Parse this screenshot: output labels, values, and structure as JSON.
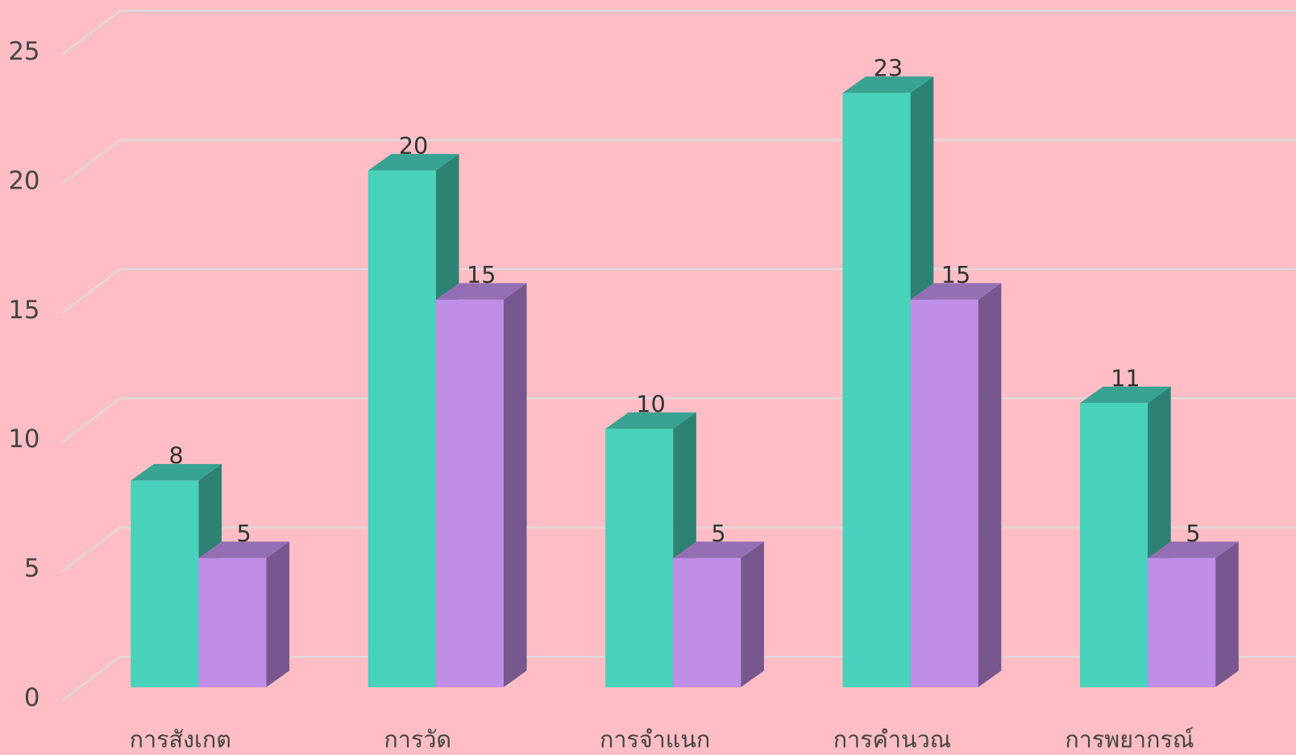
{
  "chart_data": {
    "type": "bar3d",
    "categories": [
      "การสังเกต",
      "การวัด",
      "การจำแนก",
      "การคำนวณ",
      "การพยากรณ์"
    ],
    "series": [
      {
        "color": "#48d1bb",
        "values": [
          8,
          20,
          10,
          23,
          11
        ]
      },
      {
        "color": "#bf8ee6",
        "values": [
          5,
          15,
          5,
          15,
          5
        ]
      }
    ],
    "ylim": [
      0,
      25
    ],
    "yticks": [
      0,
      5,
      10,
      15,
      20,
      25
    ],
    "grid": true
  }
}
